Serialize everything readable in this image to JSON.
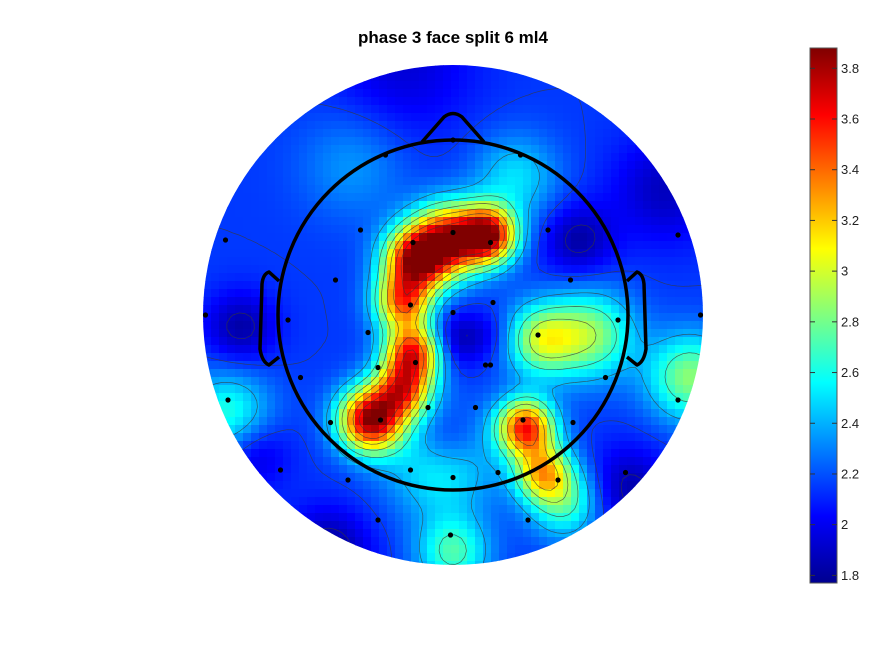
{
  "chart_data": {
    "type": "heatmap",
    "title": "phase 3 face split 6 ml4",
    "colormap": "jet",
    "colorbar": {
      "min": 1.77,
      "max": 3.88,
      "ticks": [
        1.8,
        2,
        2.2,
        2.4,
        2.6,
        2.8,
        3,
        3.2,
        3.4,
        3.6,
        3.8
      ],
      "tick_labels": [
        "1.8",
        "2",
        "2.2",
        "2.4",
        "2.6",
        "2.8",
        "3",
        "3.2",
        "3.4",
        "3.6",
        "3.8"
      ],
      "placement": "right"
    },
    "baseline": 2.15,
    "hotspots": [
      {
        "x": -0.02,
        "y": 0.3,
        "value": 3.55,
        "sigma": 0.1
      },
      {
        "x": 0.14,
        "y": 0.32,
        "value": 3.7,
        "sigma": 0.08
      },
      {
        "x": -0.15,
        "y": 0.22,
        "value": 3.6,
        "sigma": 0.09
      },
      {
        "x": -0.2,
        "y": 0.05,
        "value": 3.3,
        "sigma": 0.08
      },
      {
        "x": -0.16,
        "y": -0.15,
        "value": 3.5,
        "sigma": 0.08
      },
      {
        "x": -0.33,
        "y": -0.42,
        "value": 3.8,
        "sigma": 0.09
      },
      {
        "x": -0.2,
        "y": -0.3,
        "value": 3.3,
        "sigma": 0.08
      },
      {
        "x": 0.29,
        "y": -0.45,
        "value": 3.55,
        "sigma": 0.08
      },
      {
        "x": 0.36,
        "y": -0.63,
        "value": 3.1,
        "sigma": 0.08
      },
      {
        "x": 0.35,
        "y": -0.1,
        "value": 2.9,
        "sigma": 0.1
      },
      {
        "x": 0.55,
        "y": -0.08,
        "value": 2.85,
        "sigma": 0.12
      },
      {
        "x": 0.95,
        "y": -0.25,
        "value": 2.85,
        "sigma": 0.12
      },
      {
        "x": -0.9,
        "y": -0.4,
        "value": 2.65,
        "sigma": 0.12
      },
      {
        "x": 0.0,
        "y": -0.95,
        "value": 2.7,
        "sigma": 0.1
      },
      {
        "x": -0.05,
        "y": -0.6,
        "value": 2.6,
        "sigma": 0.15
      },
      {
        "x": 0.45,
        "y": -0.75,
        "value": 2.7,
        "sigma": 0.1
      },
      {
        "x": 0.25,
        "y": 0.55,
        "value": 2.5,
        "sigma": 0.12
      },
      {
        "x": -0.4,
        "y": 0.6,
        "value": 2.35,
        "sigma": 0.15
      },
      {
        "x": 0.0,
        "y": -0.1,
        "value": 1.85,
        "sigma": 0.08
      },
      {
        "x": 0.15,
        "y": -0.08,
        "value": 2.0,
        "sigma": 0.07
      },
      {
        "x": -0.03,
        "y": -0.5,
        "value": 1.9,
        "sigma": 0.09
      },
      {
        "x": 0.5,
        "y": 0.3,
        "value": 1.85,
        "sigma": 0.1
      },
      {
        "x": -0.2,
        "y": 1.0,
        "value": 1.95,
        "sigma": 0.2
      },
      {
        "x": 0.7,
        "y": -0.7,
        "value": 1.85,
        "sigma": 0.12
      },
      {
        "x": -0.85,
        "y": -0.05,
        "value": 1.85,
        "sigma": 0.1
      },
      {
        "x": -0.8,
        "y": -0.55,
        "value": 1.9,
        "sigma": 0.1
      },
      {
        "x": -0.5,
        "y": -0.95,
        "value": 1.8,
        "sigma": 0.12
      },
      {
        "x": 0.85,
        "y": 0.5,
        "value": 1.9,
        "sigma": 0.15
      }
    ],
    "electrodes": [
      {
        "x": 0.0,
        "y": 0.7
      },
      {
        "x": -0.27,
        "y": 0.64
      },
      {
        "x": 0.27,
        "y": 0.64
      },
      {
        "x": -0.37,
        "y": 0.34
      },
      {
        "x": 0.0,
        "y": 0.33
      },
      {
        "x": -0.16,
        "y": 0.29
      },
      {
        "x": 0.15,
        "y": 0.29
      },
      {
        "x": 0.38,
        "y": 0.34
      },
      {
        "x": -0.47,
        "y": 0.14
      },
      {
        "x": 0.47,
        "y": 0.14
      },
      {
        "x": -0.17,
        "y": 0.04
      },
      {
        "x": 0.16,
        "y": 0.05
      },
      {
        "x": 0.0,
        "y": 0.01
      },
      {
        "x": -0.66,
        "y": -0.02
      },
      {
        "x": -0.34,
        "y": -0.07
      },
      {
        "x": 0.34,
        "y": -0.08
      },
      {
        "x": 0.66,
        "y": -0.02
      },
      {
        "x": -0.15,
        "y": -0.19
      },
      {
        "x": 0.15,
        "y": -0.2
      },
      {
        "x": -0.3,
        "y": -0.21
      },
      {
        "x": 0.13,
        "y": -0.2
      },
      {
        "x": -0.61,
        "y": -0.25
      },
      {
        "x": 0.61,
        "y": -0.25
      },
      {
        "x": -0.1,
        "y": -0.37
      },
      {
        "x": 0.09,
        "y": -0.37
      },
      {
        "x": -0.29,
        "y": -0.42
      },
      {
        "x": 0.28,
        "y": -0.42
      },
      {
        "x": -0.49,
        "y": -0.43
      },
      {
        "x": 0.48,
        "y": -0.43
      },
      {
        "x": -0.17,
        "y": -0.62
      },
      {
        "x": 0.0,
        "y": -0.65
      },
      {
        "x": 0.18,
        "y": -0.63
      },
      {
        "x": -0.42,
        "y": -0.66
      },
      {
        "x": 0.42,
        "y": -0.66
      },
      {
        "x": 0.69,
        "y": -0.63
      },
      {
        "x": -0.69,
        "y": -0.62
      },
      {
        "x": -0.91,
        "y": 0.3
      },
      {
        "x": 0.9,
        "y": 0.32
      },
      {
        "x": -0.99,
        "y": 0.0
      },
      {
        "x": 0.99,
        "y": 0.0
      },
      {
        "x": -0.9,
        "y": -0.34
      },
      {
        "x": 0.9,
        "y": -0.34
      },
      {
        "x": -0.3,
        "y": -0.82
      },
      {
        "x": -0.01,
        "y": -0.88
      },
      {
        "x": 0.3,
        "y": -0.82
      }
    ]
  }
}
